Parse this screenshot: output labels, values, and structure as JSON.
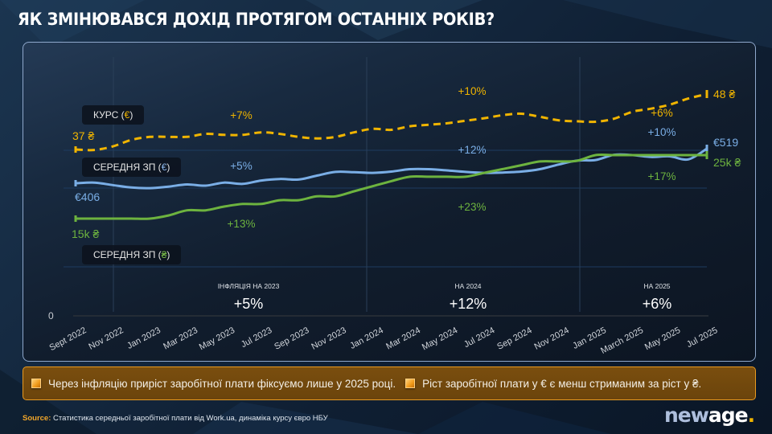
{
  "title": "ЯК ЗМІНЮВАВСЯ ДОХІД ПРОТЯГОМ ОСТАННІХ РОКІВ?",
  "colors": {
    "rate": "#f0b400",
    "salary_eur": "#7aaee6",
    "salary_uah": "#6db33f",
    "callout_border": "#e89a20",
    "callout_bg": "#6f470c",
    "source_label": "#f2a72a"
  },
  "series_tags": {
    "rate": {
      "label": "КУРС (",
      "symbol": "€",
      "close": ")"
    },
    "salary_eur": {
      "label": "СЕРЕДНЯ ЗП (",
      "symbol": "€",
      "close": ")"
    },
    "salary_uah": {
      "label": "СЕРЕДНЯ ЗП (",
      "symbol": "₴",
      "close": ")"
    }
  },
  "chart_data": {
    "type": "line",
    "title": "ЯК ЗМІНЮВАВСЯ ДОХІД ПРОТЯГОМ ОСТАННІХ РОКІВ?",
    "xlabel": "",
    "ylabel": "",
    "y_zero_label": "0",
    "grid": true,
    "x_tick_labels": [
      "Sept 2022",
      "Nov 2022",
      "Jan 2023",
      "Mar 2023",
      "May 2023",
      "Jul 2023",
      "Sep 2023",
      "Nov 2023",
      "Jan 2024",
      "Mar 2024",
      "May 2024",
      "Jul 2024",
      "Sep 2024",
      "Nov 2024",
      "Jan 2025",
      "March 2025",
      "May 2025",
      "Jul 2025"
    ],
    "x": [
      "Sep 2022",
      "Oct 2022",
      "Nov 2022",
      "Dec 2022",
      "Jan 2023",
      "Feb 2023",
      "Mar 2023",
      "Apr 2023",
      "May 2023",
      "Jun 2023",
      "Jul 2023",
      "Aug 2023",
      "Sep 2023",
      "Oct 2023",
      "Nov 2023",
      "Dec 2023",
      "Jan 2024",
      "Feb 2024",
      "Mar 2024",
      "Apr 2024",
      "May 2024",
      "Jun 2024",
      "Jul 2024",
      "Aug 2024",
      "Sep 2024",
      "Oct 2024",
      "Nov 2024",
      "Dec 2024",
      "Jan 2025",
      "Feb 2025",
      "Mar 2025",
      "Apr 2025",
      "May 2025",
      "Jun 2025",
      "Jul 2025"
    ],
    "series": [
      {
        "name": "Курс (€)",
        "key": "rate",
        "style": "dashed",
        "unit": "₴",
        "values": [
          37.0,
          36.9,
          37.6,
          38.9,
          39.5,
          39.5,
          39.5,
          40.1,
          39.9,
          39.9,
          40.4,
          40.1,
          39.5,
          39.2,
          39.5,
          40.4,
          41.1,
          40.9,
          41.6,
          41.9,
          42.2,
          42.7,
          43.2,
          43.8,
          44.1,
          43.5,
          42.8,
          42.6,
          42.5,
          43.1,
          44.5,
          45.1,
          45.9,
          47.1,
          48.0
        ],
        "start_label": "37 ₴",
        "end_label": "48 ₴",
        "period_changes": [
          "+7%",
          "+10%",
          "+6%"
        ]
      },
      {
        "name": "Середня ЗП (€)",
        "key": "salary_eur",
        "style": "solid",
        "unit": "€",
        "values": [
          406,
          408,
          400,
          392,
          390,
          395,
          402,
          398,
          408,
          404,
          415,
          420,
          418,
          431,
          443,
          442,
          440,
          444,
          452,
          452,
          448,
          443,
          440,
          441,
          444,
          452,
          467,
          480,
          482,
          499,
          498,
          492,
          494,
          484,
          519
        ],
        "start_label": "€406",
        "end_label": "€519",
        "period_changes": [
          "+5%",
          "+12%",
          "+10%"
        ]
      },
      {
        "name": "Середня ЗП (₴)",
        "key": "salary_uah",
        "style": "solid",
        "unit": "₴",
        "values": [
          15000,
          15000,
          15000,
          15000,
          15000,
          15500,
          16300,
          16300,
          16900,
          17300,
          17300,
          17900,
          17900,
          18500,
          18500,
          19300,
          20100,
          20900,
          21600,
          21600,
          21600,
          21600,
          22200,
          22800,
          23400,
          24000,
          24000,
          24100,
          25000,
          25000,
          25000,
          25000,
          25000,
          25000,
          25000
        ],
        "start_label": "15k ₴",
        "end_label": "25k ₴",
        "period_changes": [
          "+13%",
          "+23%",
          "+17%"
        ]
      }
    ],
    "annotations": [
      {
        "label": "ІНФЛЯЦІЯ НА 2023",
        "value": "+5%"
      },
      {
        "label": "НА 2024",
        "value": "+12%"
      },
      {
        "label": "НА 2025",
        "value": "+6%"
      }
    ],
    "legend": "inline-left"
  },
  "callouts": [
    "Через інфляцію приріст заробітної плати фіксуємо лише у 2025 році.",
    "Ріст заробітної плати у € є менш стриманим за ріст у ₴."
  ],
  "source": {
    "label": "Source:",
    "text": "Статистика середньої заробітної плати від Work.ua, динаміка курсу євро НБУ"
  },
  "logo": {
    "part1": "new",
    "part2": "age",
    "dot": "."
  }
}
